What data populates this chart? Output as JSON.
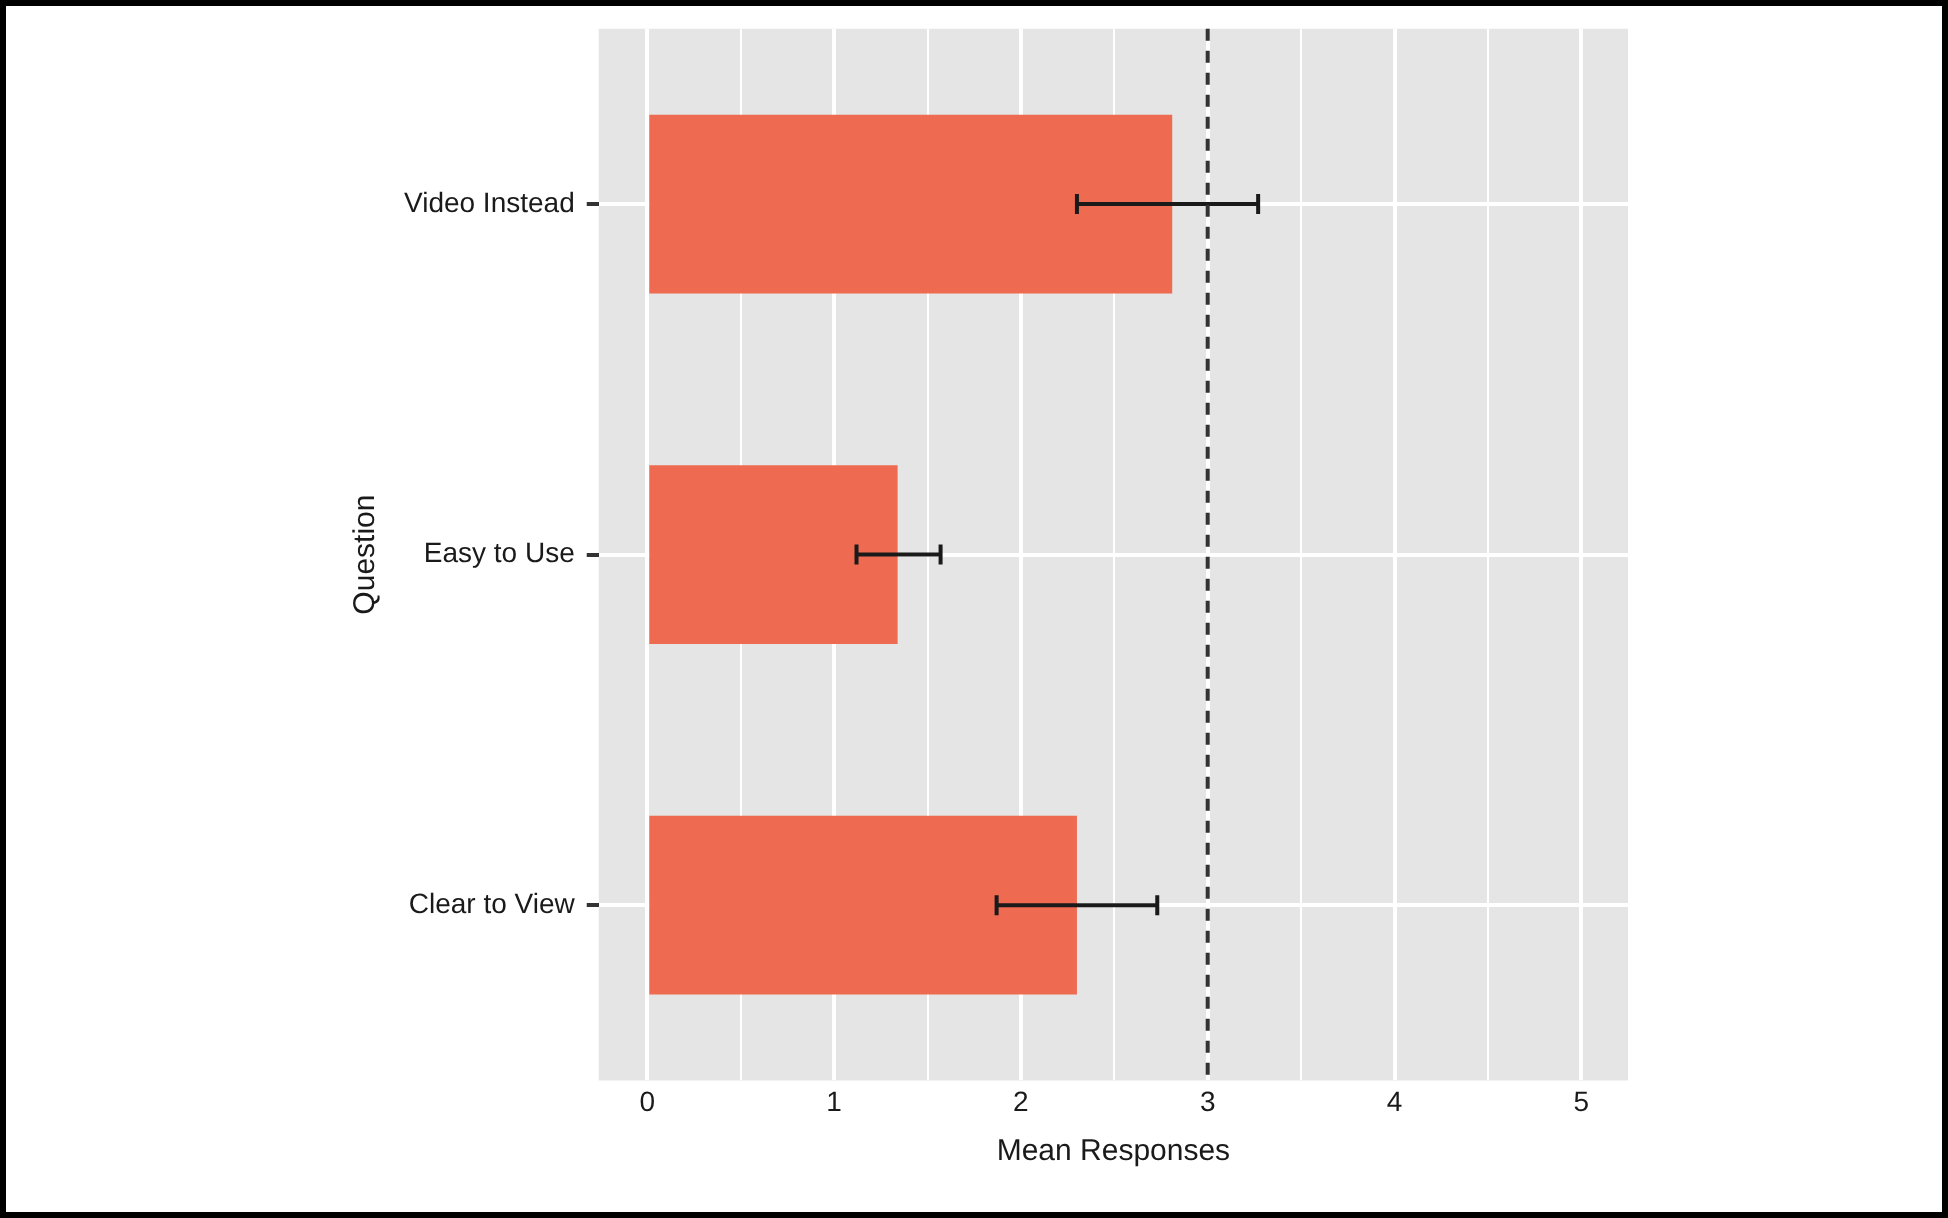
{
  "chart_data": {
    "type": "bar",
    "orientation": "horizontal",
    "xlabel": "Mean Responses",
    "ylabel": "Question",
    "categories": [
      "Video Instead",
      "Easy to Use",
      "Clear to View"
    ],
    "values": [
      2.81,
      1.34,
      2.3
    ],
    "errors": [
      [
        2.3,
        3.27
      ],
      [
        1.12,
        1.57
      ],
      [
        1.87,
        2.73
      ]
    ],
    "color": "#ee6a50",
    "xlim": [
      -0.26,
      5.25
    ],
    "xticks": [
      0,
      {
        "value": 0.5,
        "label": null
      },
      1,
      {
        "value": 1.5,
        "label": null
      },
      2,
      {
        "value": 2.5,
        "label": null
      },
      3,
      {
        "value": 3.5,
        "label": null
      },
      4,
      {
        "value": 4.5,
        "label": null
      },
      5
    ],
    "ref_lines": [
      {
        "axis": "x",
        "value": 3,
        "label": null,
        "color": "#333333",
        "line_style": "dashed"
      }
    ],
    "grid": true,
    "legend": false
  }
}
